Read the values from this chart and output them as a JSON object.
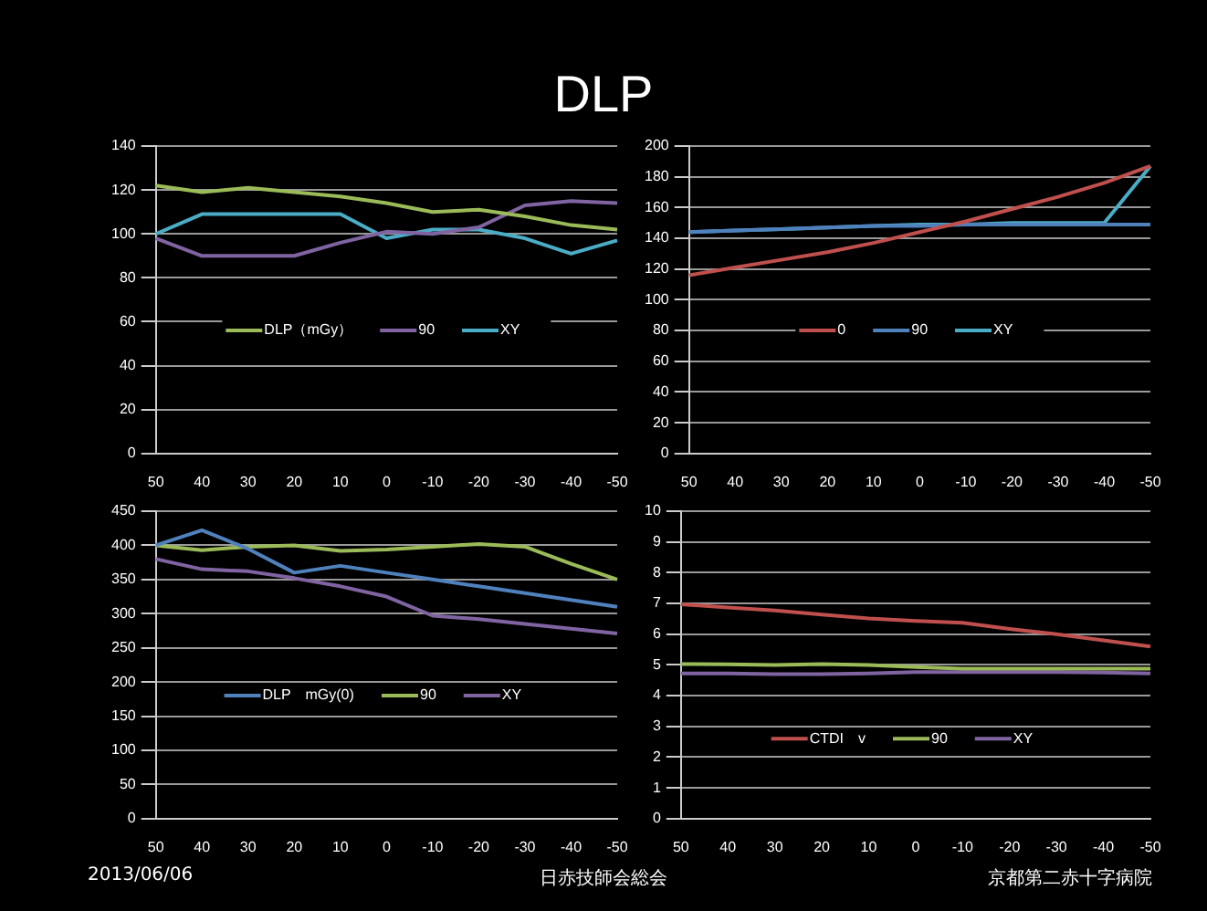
{
  "chart_data": [
    {
      "type": "line",
      "title": "DLP",
      "categories": [
        "50",
        "40",
        "30",
        "20",
        "10",
        "0",
        "-10",
        "-20",
        "-30",
        "-40",
        "-50"
      ],
      "ylim": [
        0,
        140
      ],
      "yticks": [
        0,
        20,
        40,
        60,
        80,
        100,
        120,
        140
      ],
      "grid": "y",
      "legend": "center",
      "marker": "none",
      "series": [
        {
          "name": "DLP（mGy）",
          "color": "#9bbb59",
          "values": [
            122,
            119,
            121,
            119,
            117,
            114,
            110,
            111,
            108,
            104,
            102
          ]
        },
        {
          "name": "90",
          "color": "#8064a2",
          "values": [
            98,
            90,
            90,
            90,
            96,
            101,
            100,
            103,
            113,
            115,
            114
          ]
        },
        {
          "name": "XY",
          "color": "#4bacc6",
          "values": [
            100,
            109,
            109,
            109,
            109,
            98,
            102,
            102,
            98,
            91,
            97
          ]
        }
      ]
    },
    {
      "type": "line",
      "categories": [
        "50",
        "40",
        "30",
        "20",
        "10",
        "0",
        "-10",
        "-20",
        "-30",
        "-40",
        "-50"
      ],
      "ylim": [
        0,
        200
      ],
      "yticks": [
        0,
        20,
        40,
        60,
        80,
        100,
        120,
        140,
        160,
        180,
        200
      ],
      "grid": "y",
      "legend": "center",
      "marker": "none",
      "series": [
        {
          "name": "0",
          "color": "#c0504d",
          "values": [
            116,
            121,
            126,
            131,
            137,
            144,
            151,
            159,
            167,
            176,
            187
          ]
        },
        {
          "name": "90",
          "color": "#4f81bd",
          "values": [
            144,
            145,
            146,
            147,
            148,
            148,
            149,
            149,
            149,
            149,
            149
          ]
        },
        {
          "name": "XY",
          "color": "#4bacc6",
          "values": [
            144,
            145,
            146,
            147,
            148,
            149,
            149,
            150,
            150,
            150,
            187
          ]
        }
      ]
    },
    {
      "type": "line",
      "categories": [
        "50",
        "40",
        "30",
        "20",
        "10",
        "0",
        "-10",
        "-20",
        "-30",
        "-40",
        "-50"
      ],
      "ylim": [
        0,
        450
      ],
      "yticks": [
        0,
        50,
        100,
        150,
        200,
        250,
        300,
        350,
        400,
        450
      ],
      "grid": "y",
      "legend": "center",
      "marker": "none",
      "series": [
        {
          "name": "DLP　mGy(0)",
          "color": "#4f81bd",
          "values": [
            400,
            422,
            395,
            360,
            370,
            360,
            350,
            340,
            330,
            320,
            310
          ]
        },
        {
          "name": "90",
          "color": "#9bbb59",
          "values": [
            400,
            393,
            398,
            400,
            392,
            394,
            398,
            402,
            398,
            373,
            350
          ]
        },
        {
          "name": "XY",
          "color": "#8064a2",
          "values": [
            380,
            365,
            362,
            352,
            340,
            325,
            297,
            292,
            285,
            278,
            271
          ]
        }
      ]
    },
    {
      "type": "line",
      "categories": [
        "50",
        "40",
        "30",
        "20",
        "10",
        "0",
        "-10",
        "-20",
        "-30",
        "-40",
        "-50"
      ],
      "ylim": [
        0,
        10
      ],
      "yticks": [
        0,
        1,
        2,
        3,
        4,
        5,
        6,
        7,
        8,
        9,
        10
      ],
      "grid": "y",
      "legend": "bottom",
      "marker": "none",
      "annotations": [
        "2013/06/06",
        "日赤技師会総会",
        "京都第二赤十字病院"
      ],
      "series": [
        {
          "name": "CTDI　v",
          "color": "#c0504d",
          "values": [
            6.97,
            6.87,
            6.77,
            6.64,
            6.51,
            6.43,
            6.37,
            6.17,
            6.0,
            5.8,
            5.6
          ]
        },
        {
          "name": "90",
          "color": "#9bbb59",
          "values": [
            5.03,
            5.02,
            5.0,
            5.03,
            5.0,
            4.93,
            4.88,
            4.88,
            4.88,
            4.88,
            4.88
          ]
        },
        {
          "name": "XY",
          "color": "#8064a2",
          "values": [
            4.72,
            4.72,
            4.7,
            4.7,
            4.72,
            4.77,
            4.77,
            4.77,
            4.77,
            4.75,
            4.72
          ]
        }
      ]
    }
  ]
}
